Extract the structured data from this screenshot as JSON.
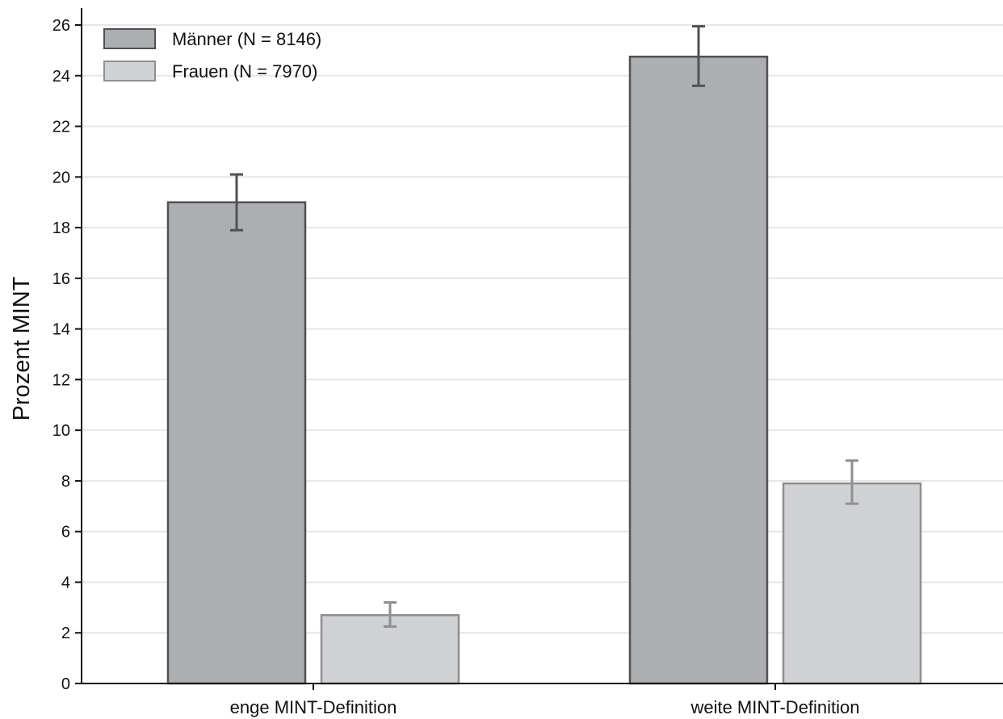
{
  "chart_data": {
    "type": "bar",
    "title": "",
    "xlabel": "",
    "ylabel": "Prozent MINT",
    "ylim": [
      0,
      26.5
    ],
    "yticks": [
      0,
      2,
      4,
      6,
      8,
      10,
      12,
      14,
      16,
      18,
      20,
      22,
      24,
      26
    ],
    "grid": true,
    "legend_position": "top-left",
    "categories": [
      "enge MINT-Definition",
      "weite MINT-Definition"
    ],
    "series": [
      {
        "name": "Männer (N = 8146)",
        "color": "#adaeb2",
        "edge_color": "#505155",
        "values": [
          19.0,
          24.75
        ],
        "error_low": [
          17.9,
          23.6
        ],
        "error_high": [
          20.1,
          25.95
        ]
      },
      {
        "name": "Frauen (N = 7970)",
        "color": "#d0d1d3",
        "edge_color": "#8e8f92",
        "values": [
          2.7,
          7.9
        ],
        "error_low": [
          2.25,
          7.1
        ],
        "error_high": [
          3.2,
          8.8
        ]
      }
    ]
  }
}
